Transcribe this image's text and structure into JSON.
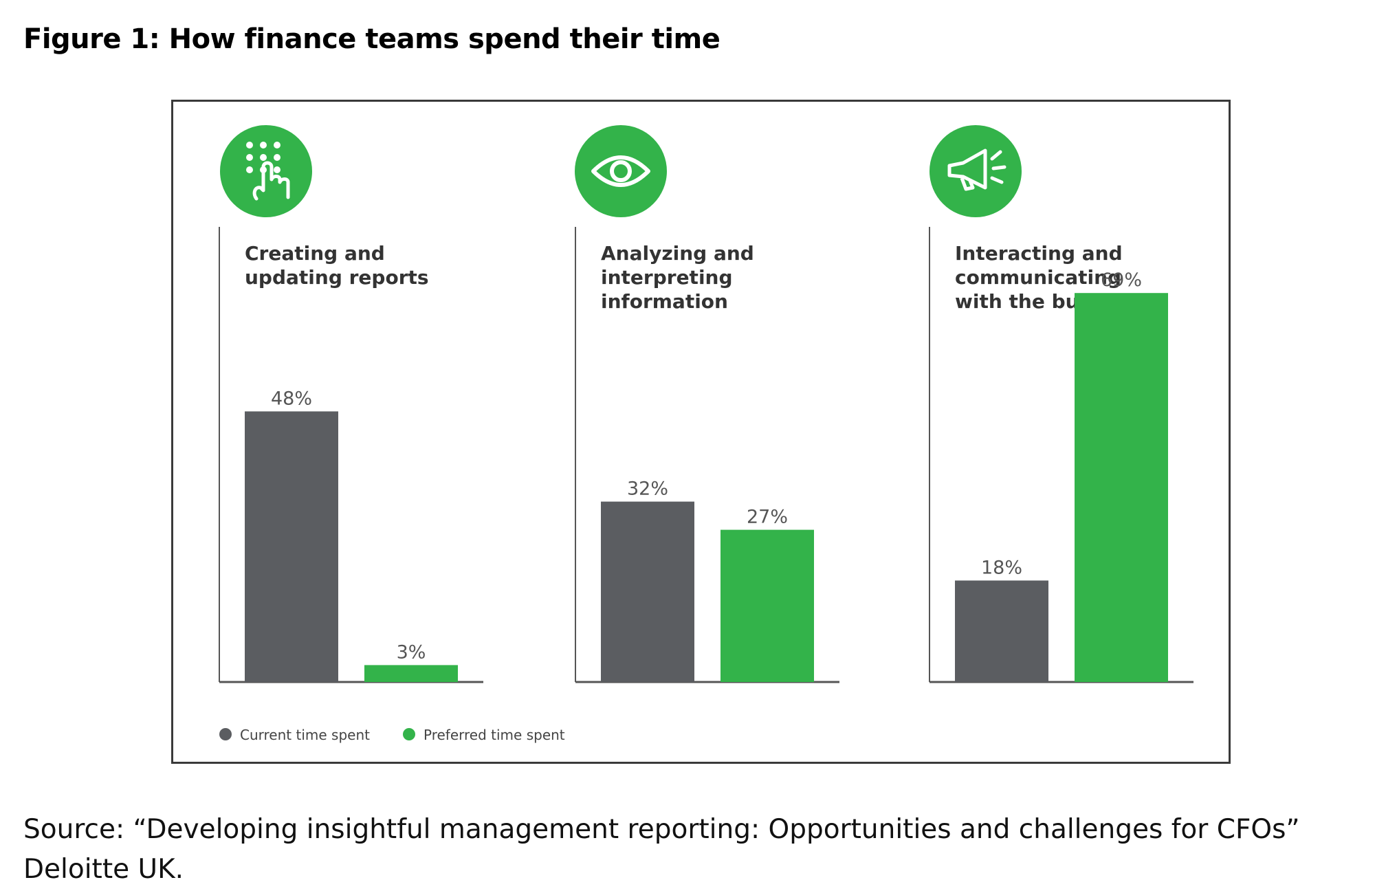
{
  "figure_title": "Figure 1: How finance teams spend their time",
  "source_text": "Source: “Developing insightful management reporting: Opportunities and challenges for CFOs” Deloitte UK.",
  "colors": {
    "current": "#5b5d61",
    "preferred": "#33b34a",
    "axis": "#555555"
  },
  "chart_data": {
    "type": "bar",
    "title": "Figure 1: How finance teams spend their time",
    "categories": [
      {
        "label_lines": [
          "Creating and",
          "updating reports"
        ],
        "icon": "touch-keypad-icon"
      },
      {
        "label_lines": [
          "Analyzing and",
          "interpreting",
          "information"
        ],
        "icon": "eye-icon"
      },
      {
        "label_lines": [
          "Interacting and",
          "communicating",
          "with the business"
        ],
        "icon": "megaphone-icon"
      }
    ],
    "series": [
      {
        "name": "Current time spent",
        "values": [
          48,
          32,
          18
        ],
        "labels": [
          "48%",
          "32%",
          "18%"
        ]
      },
      {
        "name": "Preferred time spent",
        "values": [
          3,
          27,
          69
        ],
        "labels": [
          "3%",
          "27%",
          "69%"
        ]
      }
    ],
    "ylim": [
      0,
      100
    ],
    "unit": "%",
    "grid": false,
    "legend": {
      "position": "bottom-left",
      "entries": [
        "Current time spent",
        "Preferred time spent"
      ]
    }
  }
}
